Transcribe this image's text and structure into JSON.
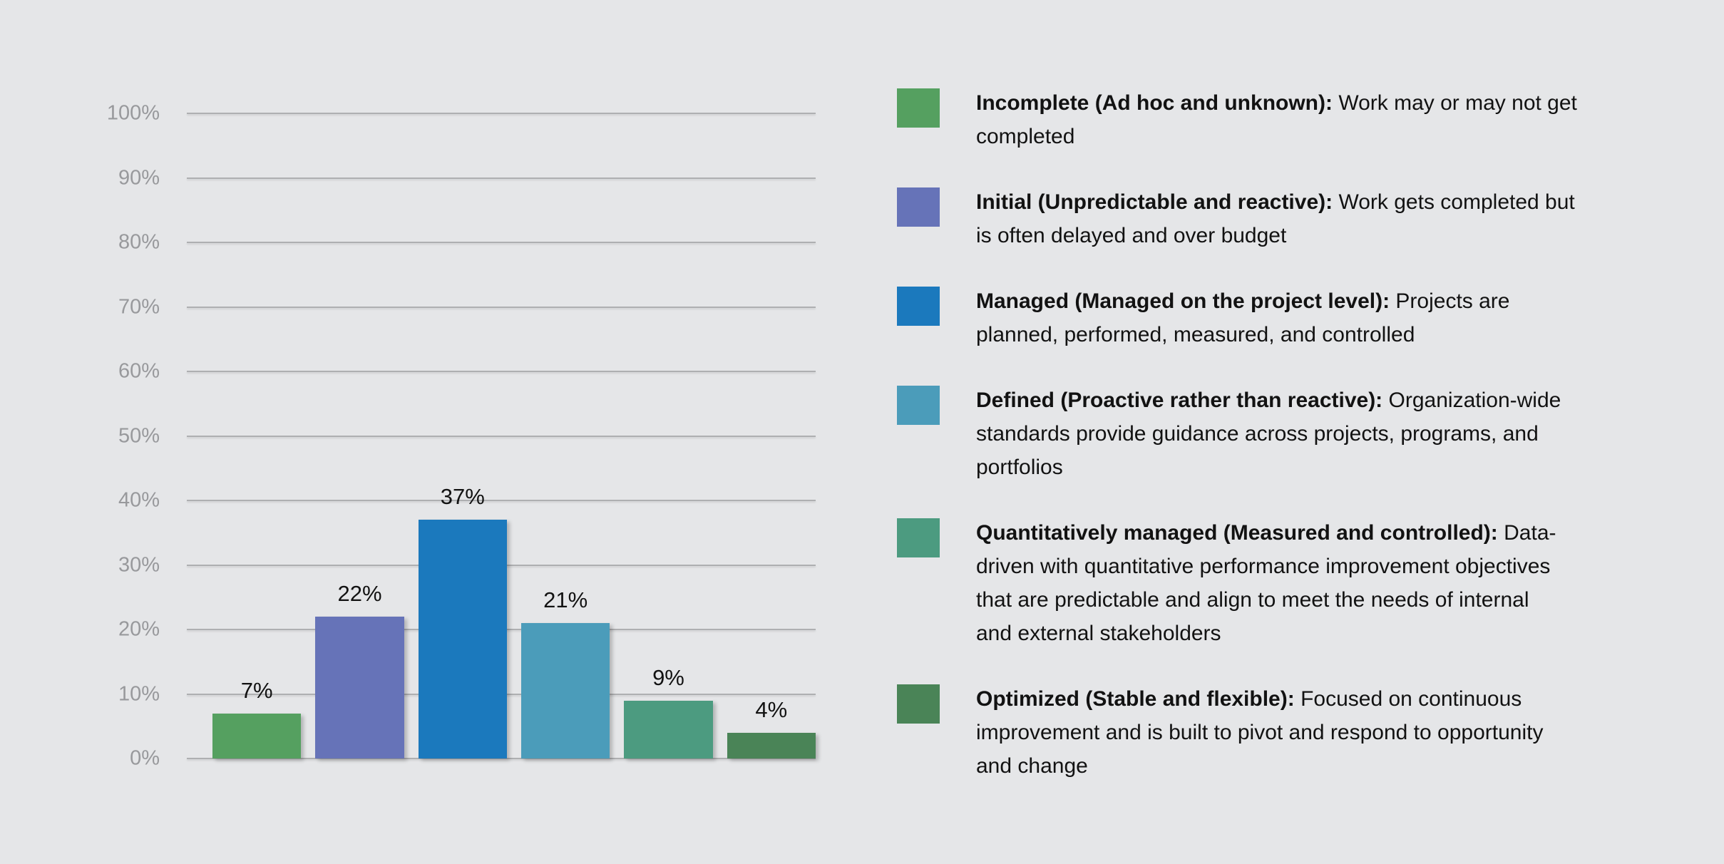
{
  "background": "#e5e6e8",
  "chart_data": {
    "type": "bar",
    "title": "",
    "categories": [
      "Incomplete (Ad hoc and unknown)",
      "Initial (Unpredictable and reactive)",
      "Managed (Managed on the project level)",
      "Defined (Proactive rather than reactive)",
      "Quantitatively managed (Measured and controlled)",
      "Optimized (Stable and flexible)"
    ],
    "values": [
      7,
      22,
      37,
      21,
      9,
      4
    ],
    "value_labels": [
      "7%",
      "22%",
      "37%",
      "21%",
      "9%",
      "4%"
    ],
    "bar_colors": [
      "#55a060",
      "#6673b8",
      "#1b79bd",
      "#4b9cba",
      "#4c9b80",
      "#4a8457"
    ],
    "y_ticks": [
      "100%",
      "90%",
      "80%",
      "70%",
      "60%",
      "50%",
      "40%",
      "30%",
      "20%",
      "10%",
      "0%"
    ],
    "y_tick_values": [
      100,
      90,
      80,
      70,
      60,
      50,
      40,
      30,
      20,
      10,
      0
    ],
    "ylim": [
      0,
      100
    ],
    "xlabel": "",
    "ylabel": "",
    "grid": true,
    "legend_position": "right",
    "colors": {
      "gridline": "#aeafb1",
      "tick_label": "#98999c",
      "value_label": "#121212"
    }
  },
  "legend": {
    "items": [
      {
        "term": "Incomplete (Ad hoc and unknown):",
        "description": "Work may or may not get\ncompleted",
        "color": "#55a060"
      },
      {
        "term": "Initial (Unpredictable and reactive):",
        "description": "Work gets completed but\nis often delayed and over budget",
        "color": "#6673b8"
      },
      {
        "term": "Managed (Managed on the project level):",
        "description": "Projects are\nplanned, performed, measured, and controlled",
        "color": "#1b79bd"
      },
      {
        "term": "Defined (Proactive rather than reactive):",
        "description": "Organization-wide\nstandards provide guidance across projects, programs, and\nportfolios",
        "color": "#4b9cba"
      },
      {
        "term": "Quantitatively managed (Measured and controlled):",
        "description": "Data-\ndriven with quantitative performance improvement objectives\nthat are predictable and align to meet the needs of internal\nand external stakeholders",
        "color": "#4c9b80"
      },
      {
        "term": "Optimized (Stable and flexible):",
        "description": "Focused on continuous\nimprovement and is built to pivot and respond to opportunity\nand change",
        "color": "#4a8457"
      }
    ]
  }
}
